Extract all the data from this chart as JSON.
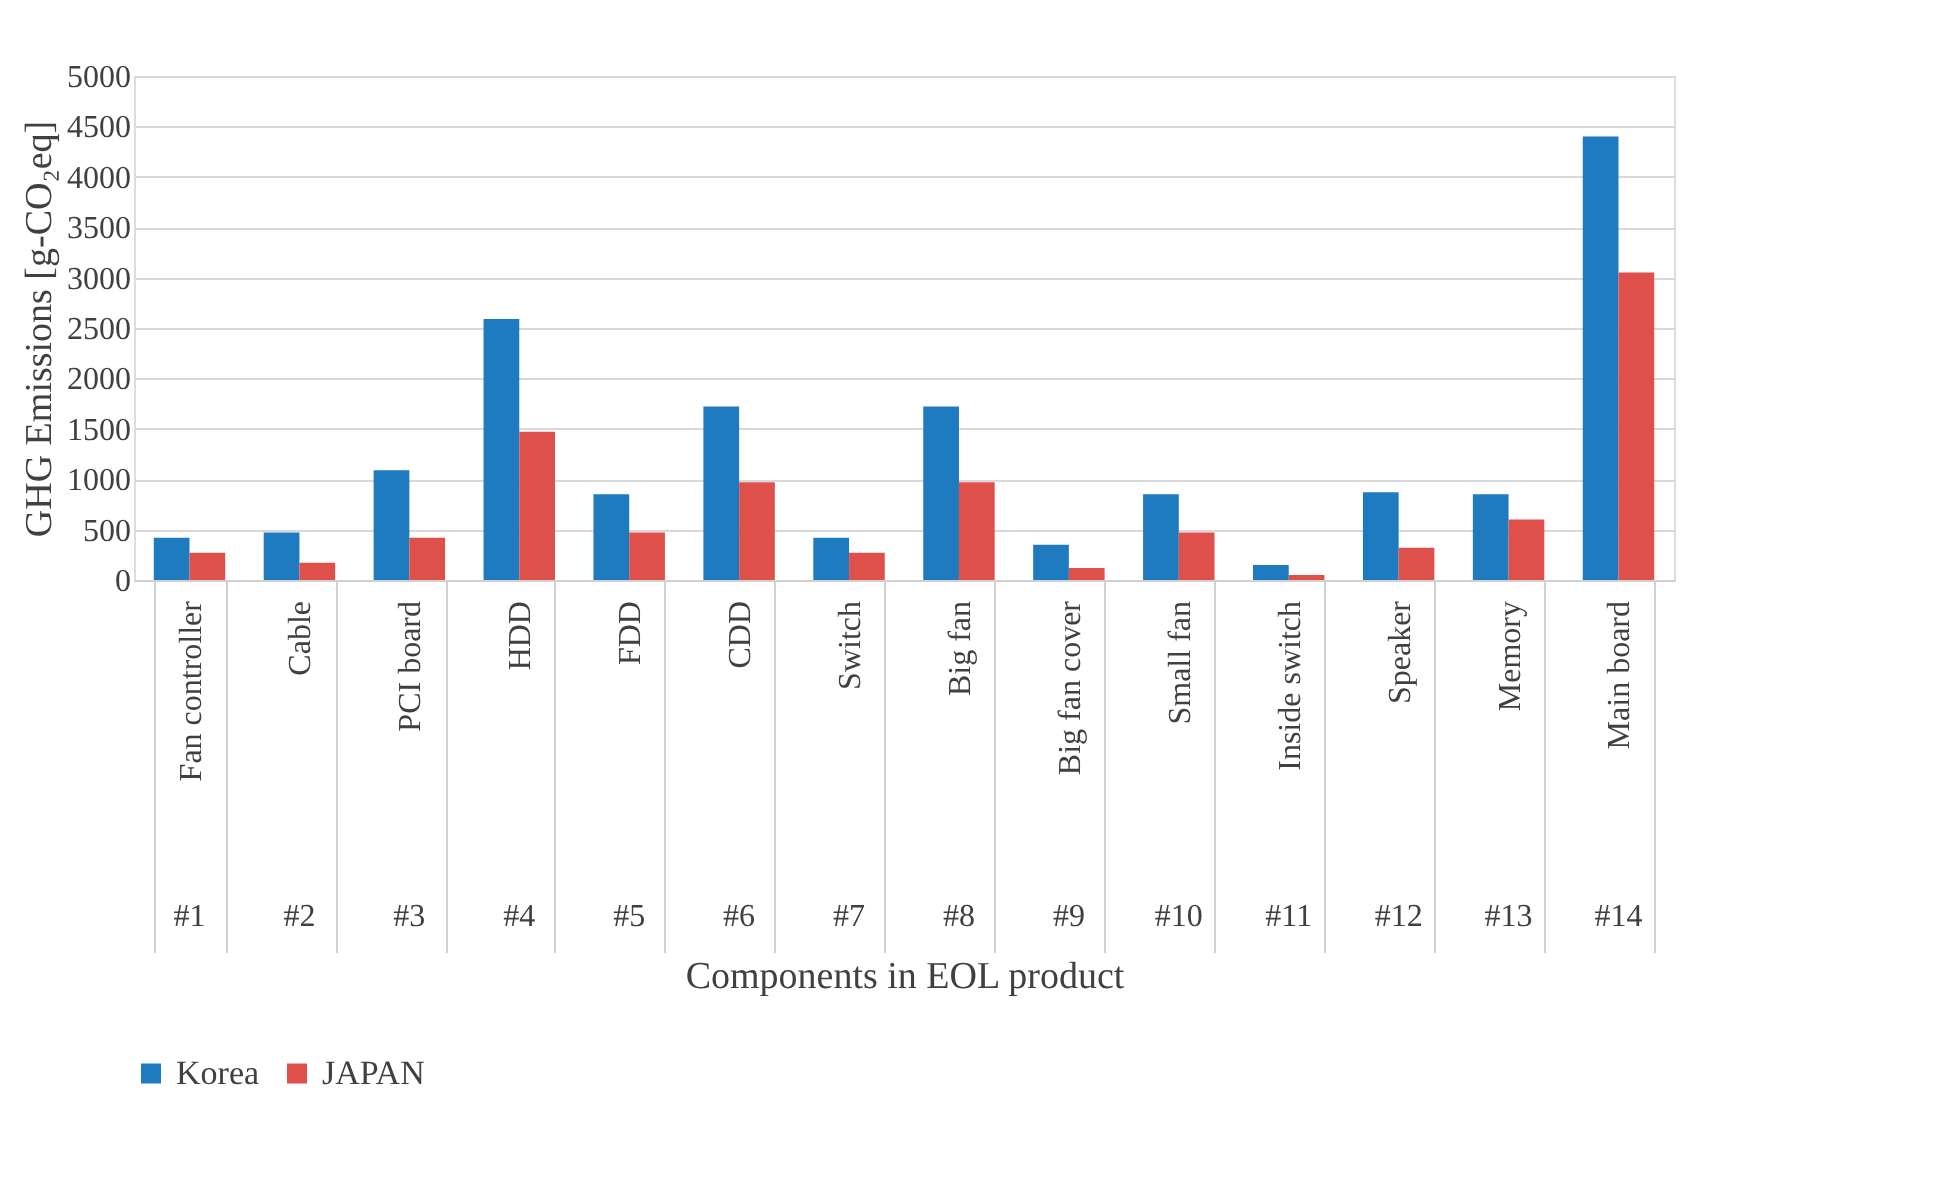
{
  "chart_data": {
    "type": "bar",
    "xlabel": "Components in EOL product",
    "ylabel": "GHG Emissions [g-CO₂eq]",
    "categories": [
      "Fan controller",
      "Cable",
      "PCI board",
      "HDD",
      "FDD",
      "CDD",
      "Switch",
      "Big fan",
      "Big fan cover",
      "Small fan",
      "Inside switch",
      "Speaker",
      "Memory",
      "Main board"
    ],
    "series": [
      {
        "name": "Korea",
        "color": "#1f7bbf",
        "values": [
          420,
          470,
          1090,
          2590,
          850,
          1720,
          420,
          1720,
          350,
          850,
          150,
          870,
          850,
          4400
        ]
      },
      {
        "name": "JAPAN",
        "color": "#e0504a",
        "values": [
          270,
          170,
          420,
          1470,
          470,
          970,
          270,
          970,
          120,
          470,
          50,
          320,
          600,
          3050
        ]
      }
    ],
    "annotations": [
      "#1",
      "#2",
      "#3",
      "#4",
      "#5",
      "#6",
      "#7",
      "#8",
      "#9",
      "#10",
      "#11",
      "#12",
      "#13",
      "#14"
    ],
    "ylim": [
      0,
      5000
    ],
    "yticks": [
      0,
      500,
      1000,
      1500,
      2000,
      2500,
      3000,
      3500,
      4000,
      4500,
      5000
    ],
    "grid": "y",
    "legend": "bottom"
  }
}
